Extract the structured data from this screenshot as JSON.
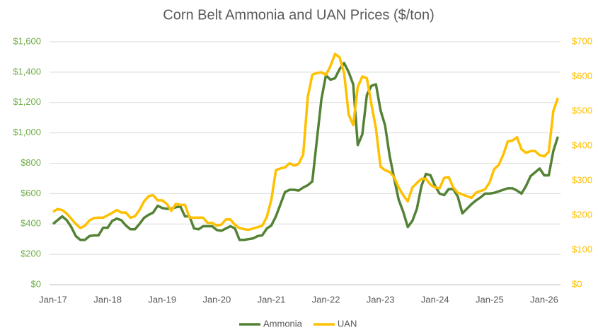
{
  "chart_data": {
    "type": "line",
    "title": "Corn Belt Ammonia and UAN Prices ($/ton)",
    "categories": [
      "Jan-17",
      null,
      null,
      null,
      null,
      null,
      null,
      null,
      null,
      null,
      null,
      null,
      "Jan-18",
      null,
      null,
      null,
      null,
      null,
      null,
      null,
      null,
      null,
      null,
      null,
      "Jan-19",
      null,
      null,
      null,
      null,
      null,
      null,
      null,
      null,
      null,
      null,
      null,
      "Jan-20",
      null,
      null,
      null,
      null,
      null,
      null,
      null,
      null,
      null,
      null,
      null,
      "Jan-21",
      null,
      null,
      null,
      null,
      null,
      null,
      null,
      null,
      null,
      null,
      null,
      "Jan-22",
      null,
      null,
      null,
      null,
      null,
      null,
      null,
      null,
      null,
      null,
      null,
      "Jan-23",
      null,
      null,
      null,
      null,
      null,
      null,
      null,
      null,
      null,
      null,
      null,
      "Jan-24",
      null,
      null,
      null,
      null,
      null,
      null,
      null,
      null,
      null,
      null,
      null,
      "Jan-25",
      null,
      null,
      null,
      null,
      null,
      null,
      null,
      null,
      null,
      null,
      null,
      "Jan-26",
      null,
      null,
      null
    ],
    "series": [
      {
        "name": "Ammonia",
        "color": "#548235",
        "values": [
          400,
          425,
          450,
          425,
          380,
          320,
          295,
          295,
          320,
          325,
          325,
          375,
          375,
          420,
          435,
          425,
          390,
          365,
          365,
          400,
          440,
          460,
          475,
          520,
          505,
          500,
          500,
          510,
          515,
          450,
          450,
          370,
          365,
          385,
          385,
          385,
          360,
          355,
          370,
          385,
          370,
          295,
          295,
          300,
          305,
          320,
          325,
          370,
          390,
          450,
          530,
          610,
          625,
          625,
          620,
          640,
          655,
          680,
          950,
          1220,
          1380,
          1350,
          1360,
          1420,
          1460,
          1400,
          1320,
          920,
          990,
          1250,
          1310,
          1320,
          1150,
          1050,
          850,
          700,
          560,
          480,
          380,
          420,
          500,
          650,
          730,
          720,
          650,
          600,
          590,
          630,
          630,
          580,
          470,
          500,
          530,
          555,
          575,
          600,
          600,
          605,
          615,
          625,
          635,
          635,
          620,
          600,
          650,
          715,
          740,
          765,
          720,
          720,
          880,
          975
        ]
      },
      {
        "name": "UAN",
        "color": "#ffc000",
        "axis": "y2",
        "values": [
          210,
          218,
          215,
          205,
          190,
          175,
          163,
          170,
          185,
          192,
          193,
          193,
          200,
          207,
          215,
          208,
          208,
          193,
          197,
          215,
          240,
          255,
          258,
          243,
          243,
          233,
          213,
          233,
          230,
          230,
          193,
          193,
          193,
          193,
          178,
          178,
          170,
          173,
          188,
          188,
          172,
          163,
          160,
          158,
          162,
          166,
          170,
          195,
          245,
          330,
          335,
          338,
          350,
          343,
          348,
          375,
          540,
          605,
          610,
          612,
          605,
          630,
          665,
          655,
          610,
          490,
          460,
          570,
          600,
          595,
          520,
          450,
          340,
          330,
          325,
          310,
          280,
          258,
          240,
          280,
          293,
          305,
          305,
          288,
          280,
          278,
          308,
          310,
          280,
          265,
          260,
          255,
          250,
          265,
          270,
          275,
          295,
          333,
          345,
          375,
          413,
          415,
          425,
          390,
          380,
          385,
          385,
          373,
          370,
          383,
          500,
          538
        ]
      }
    ],
    "ylim": [
      0,
      1600
    ],
    "yticks": [
      {
        "value": 0,
        "label": "$0"
      },
      {
        "value": 200,
        "label": "$200"
      },
      {
        "value": 400,
        "label": "$400"
      },
      {
        "value": 600,
        "label": "$600"
      },
      {
        "value": 800,
        "label": "$800"
      },
      {
        "value": 1000,
        "label": "$1,000"
      },
      {
        "value": 1200,
        "label": "$1,200"
      },
      {
        "value": 1400,
        "label": "$1,400"
      },
      {
        "value": 1600,
        "label": "$1,600"
      }
    ],
    "y2lim": [
      0,
      700
    ],
    "y2ticks": [
      {
        "value": 0,
        "label": "$0"
      },
      {
        "value": 100,
        "label": "$100"
      },
      {
        "value": 200,
        "label": "$200"
      },
      {
        "value": 300,
        "label": "$300"
      },
      {
        "value": 400,
        "label": "$400"
      },
      {
        "value": 500,
        "label": "$500"
      },
      {
        "value": 600,
        "label": "$600"
      },
      {
        "value": 700,
        "label": "$700"
      }
    ],
    "grid": true,
    "legend": "bottom"
  }
}
